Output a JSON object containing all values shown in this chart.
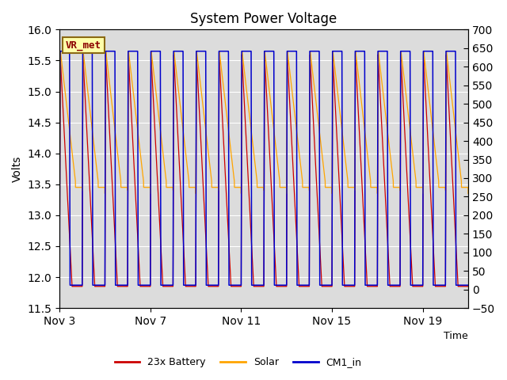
{
  "title": "System Power Voltage",
  "ylabel_left": "Volts",
  "xlabel": "Time",
  "ylim_left": [
    11.5,
    16.0
  ],
  "ylim_right": [
    -50,
    700
  ],
  "yticks_left": [
    11.5,
    12.0,
    12.5,
    13.0,
    13.5,
    14.0,
    14.5,
    15.0,
    15.5,
    16.0
  ],
  "yticks_right": [
    -50,
    0,
    50,
    100,
    150,
    200,
    250,
    300,
    350,
    400,
    450,
    500,
    550,
    600,
    650,
    700
  ],
  "xtick_labels": [
    "Nov 3",
    "Nov 7",
    "Nov 11",
    "Nov 15",
    "Nov 19"
  ],
  "background_color": "#ffffff",
  "plot_bg_color": "#dcdcdc",
  "grid_color": "#ffffff",
  "annotation_text": "VR_met",
  "legend_labels": [
    "23x Battery",
    "Solar",
    "CM1_in"
  ],
  "legend_colors": [
    "#cc0000",
    "#ffa500",
    "#0000cc"
  ],
  "num_cycles": 18,
  "title_fontsize": 12,
  "figsize": [
    6.4,
    4.8
  ],
  "dpi": 100
}
